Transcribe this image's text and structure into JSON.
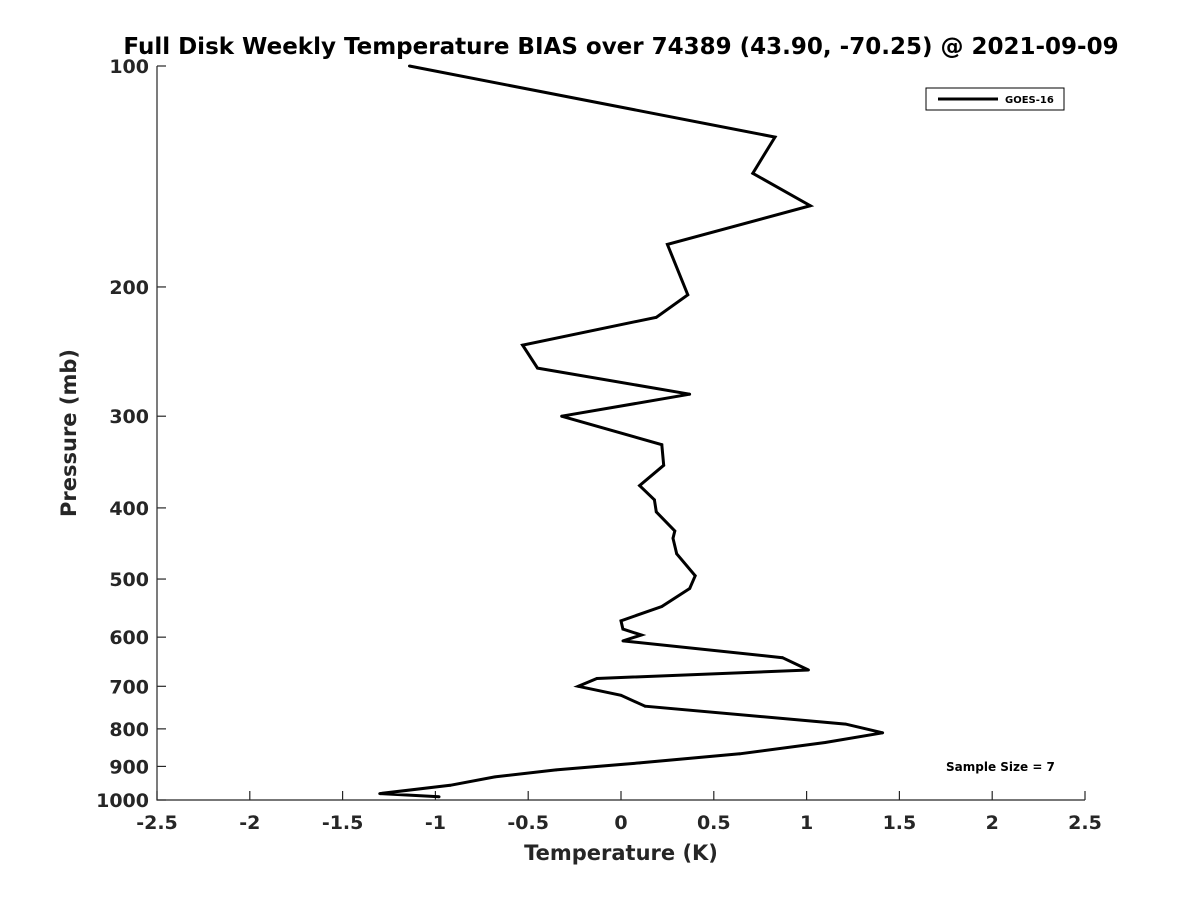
{
  "chart_data": {
    "type": "line",
    "title": "Full Disk Weekly Temperature BIAS over 74389 (43.90, -70.25) @ 2021-09-09",
    "xlabel": "Temperature (K)",
    "ylabel": "Pressure (mb)",
    "xlim": [
      -2.5,
      2.5
    ],
    "ylim": [
      1000,
      100
    ],
    "yscale": "log",
    "y_reversed": true,
    "xticks": [
      -2.5,
      -2,
      -1.5,
      -1,
      -0.5,
      0,
      0.5,
      1,
      1.5,
      2,
      2.5
    ],
    "xtick_labels": [
      "-2.5",
      "-2",
      "-1.5",
      "-1",
      "-0.5",
      "0",
      "0.5",
      "1",
      "1.5",
      "2",
      "2.5"
    ],
    "yticks": [
      100,
      200,
      300,
      400,
      500,
      600,
      700,
      800,
      900,
      1000
    ],
    "ytick_labels": [
      "100",
      "200",
      "300",
      "400",
      "500",
      "600",
      "700",
      "800",
      "900",
      "1000"
    ],
    "grid": false,
    "legend": {
      "placement": "top-right",
      "entries": [
        "GOES-16"
      ]
    },
    "annotation": "Sample Size = 7",
    "series": [
      {
        "name": "GOES-16",
        "color": "#000000",
        "x": [
          -1.14,
          0.83,
          0.71,
          1.02,
          0.25,
          0.36,
          0.19,
          -0.53,
          -0.45,
          0.37,
          -0.32,
          0.22,
          0.23,
          0.1,
          0.18,
          0.19,
          0.29,
          0.28,
          0.3,
          0.4,
          0.37,
          0.22,
          0.0,
          0.01,
          0.11,
          0.01,
          0.87,
          1.01,
          -0.13,
          -0.23,
          0.0,
          0.13,
          1.21,
          1.41,
          1.1,
          0.64,
          0.1,
          -0.35,
          -0.68,
          -0.92,
          -1.3,
          -0.98
        ],
        "y": [
          100,
          125,
          140,
          155,
          175,
          205,
          220,
          240,
          258,
          280,
          300,
          328,
          350,
          373,
          390,
          405,
          430,
          440,
          462,
          495,
          515,
          545,
          570,
          585,
          596,
          607,
          640,
          665,
          683,
          700,
          720,
          745,
          788,
          810,
          835,
          865,
          890,
          910,
          930,
          955,
          980,
          990
        ]
      }
    ]
  }
}
